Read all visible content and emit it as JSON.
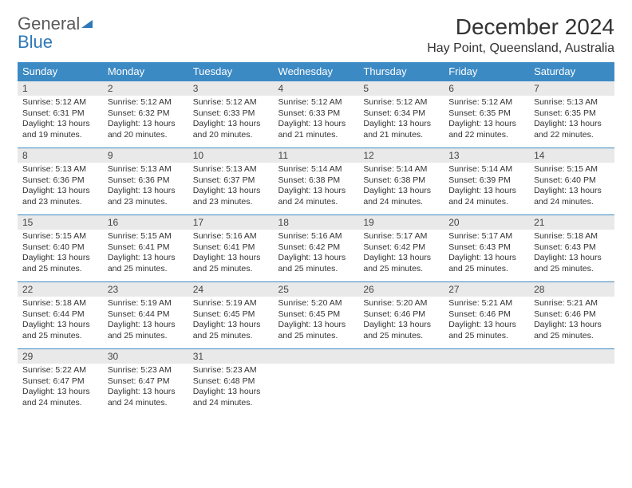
{
  "logo": {
    "line1": "General",
    "line2": "Blue"
  },
  "title": "December 2024",
  "location": "Hay Point, Queensland, Australia",
  "colors": {
    "header_bg": "#3c8ac4",
    "header_text": "#ffffff",
    "daybar_bg": "#e9e9e9",
    "logo_general": "#5a5a5a",
    "logo_blue": "#2f78b7",
    "border": "#3c8ac4"
  },
  "weekdays": [
    "Sunday",
    "Monday",
    "Tuesday",
    "Wednesday",
    "Thursday",
    "Friday",
    "Saturday"
  ],
  "weeks": [
    [
      {
        "day": "1",
        "sunrise": "Sunrise: 5:12 AM",
        "sunset": "Sunset: 6:31 PM",
        "daylight": "Daylight: 13 hours and 19 minutes."
      },
      {
        "day": "2",
        "sunrise": "Sunrise: 5:12 AM",
        "sunset": "Sunset: 6:32 PM",
        "daylight": "Daylight: 13 hours and 20 minutes."
      },
      {
        "day": "3",
        "sunrise": "Sunrise: 5:12 AM",
        "sunset": "Sunset: 6:33 PM",
        "daylight": "Daylight: 13 hours and 20 minutes."
      },
      {
        "day": "4",
        "sunrise": "Sunrise: 5:12 AM",
        "sunset": "Sunset: 6:33 PM",
        "daylight": "Daylight: 13 hours and 21 minutes."
      },
      {
        "day": "5",
        "sunrise": "Sunrise: 5:12 AM",
        "sunset": "Sunset: 6:34 PM",
        "daylight": "Daylight: 13 hours and 21 minutes."
      },
      {
        "day": "6",
        "sunrise": "Sunrise: 5:12 AM",
        "sunset": "Sunset: 6:35 PM",
        "daylight": "Daylight: 13 hours and 22 minutes."
      },
      {
        "day": "7",
        "sunrise": "Sunrise: 5:13 AM",
        "sunset": "Sunset: 6:35 PM",
        "daylight": "Daylight: 13 hours and 22 minutes."
      }
    ],
    [
      {
        "day": "8",
        "sunrise": "Sunrise: 5:13 AM",
        "sunset": "Sunset: 6:36 PM",
        "daylight": "Daylight: 13 hours and 23 minutes."
      },
      {
        "day": "9",
        "sunrise": "Sunrise: 5:13 AM",
        "sunset": "Sunset: 6:36 PM",
        "daylight": "Daylight: 13 hours and 23 minutes."
      },
      {
        "day": "10",
        "sunrise": "Sunrise: 5:13 AM",
        "sunset": "Sunset: 6:37 PM",
        "daylight": "Daylight: 13 hours and 23 minutes."
      },
      {
        "day": "11",
        "sunrise": "Sunrise: 5:14 AM",
        "sunset": "Sunset: 6:38 PM",
        "daylight": "Daylight: 13 hours and 24 minutes."
      },
      {
        "day": "12",
        "sunrise": "Sunrise: 5:14 AM",
        "sunset": "Sunset: 6:38 PM",
        "daylight": "Daylight: 13 hours and 24 minutes."
      },
      {
        "day": "13",
        "sunrise": "Sunrise: 5:14 AM",
        "sunset": "Sunset: 6:39 PM",
        "daylight": "Daylight: 13 hours and 24 minutes."
      },
      {
        "day": "14",
        "sunrise": "Sunrise: 5:15 AM",
        "sunset": "Sunset: 6:40 PM",
        "daylight": "Daylight: 13 hours and 24 minutes."
      }
    ],
    [
      {
        "day": "15",
        "sunrise": "Sunrise: 5:15 AM",
        "sunset": "Sunset: 6:40 PM",
        "daylight": "Daylight: 13 hours and 25 minutes."
      },
      {
        "day": "16",
        "sunrise": "Sunrise: 5:15 AM",
        "sunset": "Sunset: 6:41 PM",
        "daylight": "Daylight: 13 hours and 25 minutes."
      },
      {
        "day": "17",
        "sunrise": "Sunrise: 5:16 AM",
        "sunset": "Sunset: 6:41 PM",
        "daylight": "Daylight: 13 hours and 25 minutes."
      },
      {
        "day": "18",
        "sunrise": "Sunrise: 5:16 AM",
        "sunset": "Sunset: 6:42 PM",
        "daylight": "Daylight: 13 hours and 25 minutes."
      },
      {
        "day": "19",
        "sunrise": "Sunrise: 5:17 AM",
        "sunset": "Sunset: 6:42 PM",
        "daylight": "Daylight: 13 hours and 25 minutes."
      },
      {
        "day": "20",
        "sunrise": "Sunrise: 5:17 AM",
        "sunset": "Sunset: 6:43 PM",
        "daylight": "Daylight: 13 hours and 25 minutes."
      },
      {
        "day": "21",
        "sunrise": "Sunrise: 5:18 AM",
        "sunset": "Sunset: 6:43 PM",
        "daylight": "Daylight: 13 hours and 25 minutes."
      }
    ],
    [
      {
        "day": "22",
        "sunrise": "Sunrise: 5:18 AM",
        "sunset": "Sunset: 6:44 PM",
        "daylight": "Daylight: 13 hours and 25 minutes."
      },
      {
        "day": "23",
        "sunrise": "Sunrise: 5:19 AM",
        "sunset": "Sunset: 6:44 PM",
        "daylight": "Daylight: 13 hours and 25 minutes."
      },
      {
        "day": "24",
        "sunrise": "Sunrise: 5:19 AM",
        "sunset": "Sunset: 6:45 PM",
        "daylight": "Daylight: 13 hours and 25 minutes."
      },
      {
        "day": "25",
        "sunrise": "Sunrise: 5:20 AM",
        "sunset": "Sunset: 6:45 PM",
        "daylight": "Daylight: 13 hours and 25 minutes."
      },
      {
        "day": "26",
        "sunrise": "Sunrise: 5:20 AM",
        "sunset": "Sunset: 6:46 PM",
        "daylight": "Daylight: 13 hours and 25 minutes."
      },
      {
        "day": "27",
        "sunrise": "Sunrise: 5:21 AM",
        "sunset": "Sunset: 6:46 PM",
        "daylight": "Daylight: 13 hours and 25 minutes."
      },
      {
        "day": "28",
        "sunrise": "Sunrise: 5:21 AM",
        "sunset": "Sunset: 6:46 PM",
        "daylight": "Daylight: 13 hours and 25 minutes."
      }
    ],
    [
      {
        "day": "29",
        "sunrise": "Sunrise: 5:22 AM",
        "sunset": "Sunset: 6:47 PM",
        "daylight": "Daylight: 13 hours and 24 minutes."
      },
      {
        "day": "30",
        "sunrise": "Sunrise: 5:23 AM",
        "sunset": "Sunset: 6:47 PM",
        "daylight": "Daylight: 13 hours and 24 minutes."
      },
      {
        "day": "31",
        "sunrise": "Sunrise: 5:23 AM",
        "sunset": "Sunset: 6:48 PM",
        "daylight": "Daylight: 13 hours and 24 minutes."
      },
      null,
      null,
      null,
      null
    ]
  ]
}
